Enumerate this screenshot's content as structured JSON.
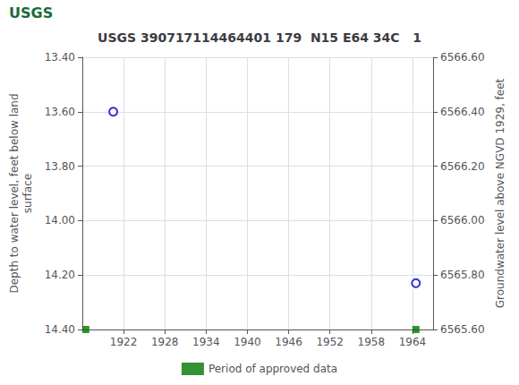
{
  "chart_data": {
    "type": "scatter",
    "title": "USGS 390717114464401 179  N15 E64 34C   1",
    "annotations": [
      "USGS"
    ],
    "ylabel": "Depth to water level, feet below land\nsurface",
    "y2label": "Groundwater level above NGVD 1929, feet",
    "xlim": [
      1916,
      1967
    ],
    "xticks": [
      1922,
      1928,
      1934,
      1940,
      1946,
      1952,
      1958,
      1964
    ],
    "ylim": [
      14.4,
      13.4
    ],
    "yticks": [
      {
        "value": 13.4,
        "label": "13.40"
      },
      {
        "value": 13.6,
        "label": "13.60"
      },
      {
        "value": 13.8,
        "label": "13.80"
      },
      {
        "value": 14.0,
        "label": "14.00"
      },
      {
        "value": 14.2,
        "label": "14.20"
      },
      {
        "value": 14.4,
        "label": "14.40"
      }
    ],
    "y2lim": [
      6565.6,
      6566.6
    ],
    "y2ticks": [
      {
        "value": 6565.6,
        "label": "6565.60"
      },
      {
        "value": 6565.8,
        "label": "6565.80"
      },
      {
        "value": 6566.0,
        "label": "6566.00"
      },
      {
        "value": 6566.2,
        "label": "6566.20"
      },
      {
        "value": 6566.4,
        "label": "6566.40"
      },
      {
        "value": 6566.6,
        "label": "6566.60"
      }
    ],
    "grid": true,
    "legend": "bottom",
    "series": [
      {
        "x": [
          1920.5,
          1964.5
        ],
        "values": [
          13.6,
          14.23
        ],
        "color": "#0000cc",
        "marker": "open_circle"
      },
      {
        "name": "Period of approved data",
        "x": [
          1916.5,
          1964.5
        ],
        "values": [
          14.4,
          14.4
        ],
        "color": "#007700",
        "marker": "square"
      }
    ]
  }
}
